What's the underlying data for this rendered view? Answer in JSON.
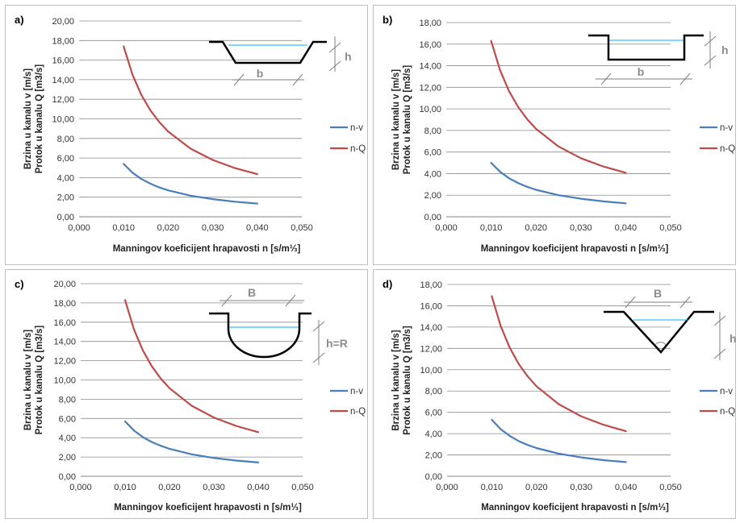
{
  "chart_data": [
    {
      "type": "line",
      "panel_label": "a)",
      "xlabel": "Manningov koeficijent hrapavosti n [s/m⅓]",
      "ylabel_lines": [
        "Brzina u kanalu v [m/s]",
        "Protok u kanalu Q [m3/s]"
      ],
      "xlim": [
        0,
        0.05
      ],
      "ylim": [
        0,
        20
      ],
      "x_ticks": [
        "0,000",
        "0,010",
        "0,020",
        "0,030",
        "0,040",
        "0,050"
      ],
      "y_ticks": [
        "0,00",
        "2,00",
        "4,00",
        "6,00",
        "8,00",
        "10,00",
        "12,00",
        "14,00",
        "16,00",
        "18,00",
        "20,00"
      ],
      "legend_position": "right",
      "series": [
        {
          "name": "n-v",
          "color": "#4a7ebb",
          "x": [
            0.01,
            0.012,
            0.014,
            0.016,
            0.018,
            0.02,
            0.025,
            0.03,
            0.035,
            0.04
          ],
          "y": [
            5.4,
            4.5,
            3.85,
            3.38,
            3.0,
            2.7,
            2.16,
            1.8,
            1.54,
            1.35
          ]
        },
        {
          "name": "n-Q",
          "color": "#be4b48",
          "x": [
            0.01,
            0.012,
            0.014,
            0.016,
            0.018,
            0.02,
            0.025,
            0.03,
            0.035,
            0.04
          ],
          "y": [
            17.4,
            14.5,
            12.43,
            10.88,
            9.67,
            8.7,
            6.96,
            5.8,
            4.97,
            4.35
          ]
        }
      ],
      "diagram": {
        "shape": "trapezoid",
        "labels": [
          "h",
          "b"
        ]
      }
    },
    {
      "type": "line",
      "panel_label": "b)",
      "xlabel": "Manningov koeficijent hrapavosti n [s/m⅓]",
      "ylabel_lines": [
        "Brzina u kanalu v [m/s]",
        "Protok u kanalu Q [m3/s]"
      ],
      "xlim": [
        0,
        0.05
      ],
      "ylim": [
        0,
        18
      ],
      "x_ticks": [
        "0,000",
        "0,010",
        "0,020",
        "0,030",
        "0,040",
        "0,050"
      ],
      "y_ticks": [
        "0,00",
        "2,00",
        "4,00",
        "6,00",
        "8,00",
        "10,00",
        "12,00",
        "14,00",
        "16,00",
        "18,00"
      ],
      "legend_position": "right",
      "series": [
        {
          "name": "n-v",
          "color": "#4a7ebb",
          "x": [
            0.01,
            0.012,
            0.014,
            0.016,
            0.018,
            0.02,
            0.025,
            0.03,
            0.035,
            0.04
          ],
          "y": [
            5.0,
            4.17,
            3.57,
            3.13,
            2.78,
            2.5,
            2.0,
            1.67,
            1.43,
            1.25
          ]
        },
        {
          "name": "n-Q",
          "color": "#be4b48",
          "x": [
            0.01,
            0.012,
            0.014,
            0.016,
            0.018,
            0.02,
            0.025,
            0.03,
            0.035,
            0.04
          ],
          "y": [
            16.3,
            13.58,
            11.64,
            10.19,
            9.06,
            8.15,
            6.52,
            5.43,
            4.66,
            4.08
          ]
        }
      ],
      "diagram": {
        "shape": "rectangle",
        "labels": [
          "h",
          "b"
        ]
      }
    },
    {
      "type": "line",
      "panel_label": "c)",
      "xlabel": "Manningov koeficijent hrapavosti n [s/m⅓]",
      "ylabel_lines": [
        "Brzina u kanalu v [m/s]",
        "Protok u kanalu Q [m3/s]"
      ],
      "xlim": [
        0,
        0.05
      ],
      "ylim": [
        0,
        20
      ],
      "x_ticks": [
        "0,000",
        "0,010",
        "0,020",
        "0,030",
        "0,040",
        "0,050"
      ],
      "y_ticks": [
        "0,00",
        "2,00",
        "4,00",
        "6,00",
        "8,00",
        "10,00",
        "12,00",
        "14,00",
        "16,00",
        "18,00",
        "20,00"
      ],
      "legend_position": "right",
      "series": [
        {
          "name": "n-v",
          "color": "#4a7ebb",
          "x": [
            0.01,
            0.012,
            0.014,
            0.016,
            0.018,
            0.02,
            0.025,
            0.03,
            0.035,
            0.04
          ],
          "y": [
            5.7,
            4.75,
            4.07,
            3.56,
            3.17,
            2.85,
            2.28,
            1.9,
            1.63,
            1.43
          ]
        },
        {
          "name": "n-Q",
          "color": "#be4b48",
          "x": [
            0.01,
            0.012,
            0.014,
            0.016,
            0.018,
            0.02,
            0.025,
            0.03,
            0.035,
            0.04
          ],
          "y": [
            18.3,
            15.25,
            13.07,
            11.44,
            10.17,
            9.15,
            7.32,
            6.1,
            5.23,
            4.58
          ]
        }
      ],
      "diagram": {
        "shape": "semicircle",
        "labels": [
          "B",
          "h=R"
        ]
      }
    },
    {
      "type": "line",
      "panel_label": "d)",
      "xlabel": "Manningov koeficijent hrapavosti n [s/m⅓]",
      "ylabel_lines": [
        "Brzina u kanalu v [m/s]",
        "Protok u kanalu Q [m3/s]"
      ],
      "xlim": [
        0,
        0.05
      ],
      "ylim": [
        0,
        18
      ],
      "x_ticks": [
        "0,000",
        "0,010",
        "0,020",
        "0,030",
        "0,040",
        "0,050"
      ],
      "y_ticks": [
        "0,00",
        "2,00",
        "4,00",
        "6,00",
        "8,00",
        "10,00",
        "12,00",
        "14,00",
        "16,00",
        "18,00"
      ],
      "legend_position": "right",
      "series": [
        {
          "name": "n-v",
          "color": "#4a7ebb",
          "x": [
            0.01,
            0.012,
            0.014,
            0.016,
            0.018,
            0.02,
            0.025,
            0.03,
            0.035,
            0.04
          ],
          "y": [
            5.3,
            4.42,
            3.79,
            3.31,
            2.94,
            2.65,
            2.12,
            1.77,
            1.51,
            1.33
          ]
        },
        {
          "name": "n-Q",
          "color": "#be4b48",
          "x": [
            0.01,
            0.012,
            0.014,
            0.016,
            0.018,
            0.02,
            0.025,
            0.03,
            0.035,
            0.04
          ],
          "y": [
            16.9,
            14.08,
            12.07,
            10.56,
            9.39,
            8.45,
            6.76,
            5.63,
            4.83,
            4.23
          ]
        }
      ],
      "diagram": {
        "shape": "triangle",
        "labels": [
          "B",
          "h"
        ]
      }
    }
  ]
}
